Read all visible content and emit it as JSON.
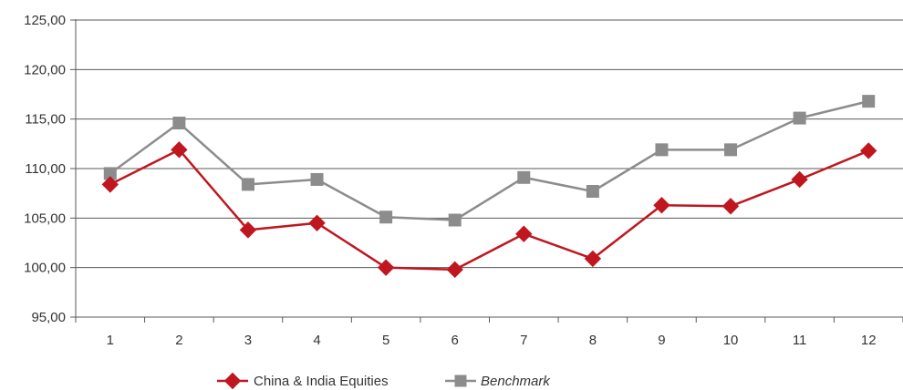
{
  "chart_data": {
    "type": "line",
    "categories": [
      "1",
      "2",
      "3",
      "4",
      "5",
      "6",
      "7",
      "8",
      "9",
      "10",
      "11",
      "12"
    ],
    "y_tick_labels": [
      "95,00",
      "100,00",
      "105,00",
      "110,00",
      "115,00",
      "120,00",
      "125,00"
    ],
    "y_ticks": [
      95,
      100,
      105,
      110,
      115,
      120,
      125
    ],
    "ylim": [
      95,
      125
    ],
    "grid": true,
    "legend_position": "bottom",
    "series": [
      {
        "name": "China & India Equities",
        "color": "#c0161f",
        "marker": "diamond",
        "values": [
          108.4,
          111.9,
          103.8,
          104.5,
          100.0,
          99.8,
          103.4,
          100.9,
          106.3,
          106.2,
          108.9,
          111.8
        ]
      },
      {
        "name": "Benchmark",
        "color": "#8c8c8c",
        "marker": "square",
        "values": [
          109.5,
          114.6,
          108.4,
          108.9,
          105.1,
          104.8,
          109.1,
          107.7,
          111.9,
          111.9,
          115.1,
          116.8
        ]
      }
    ]
  }
}
